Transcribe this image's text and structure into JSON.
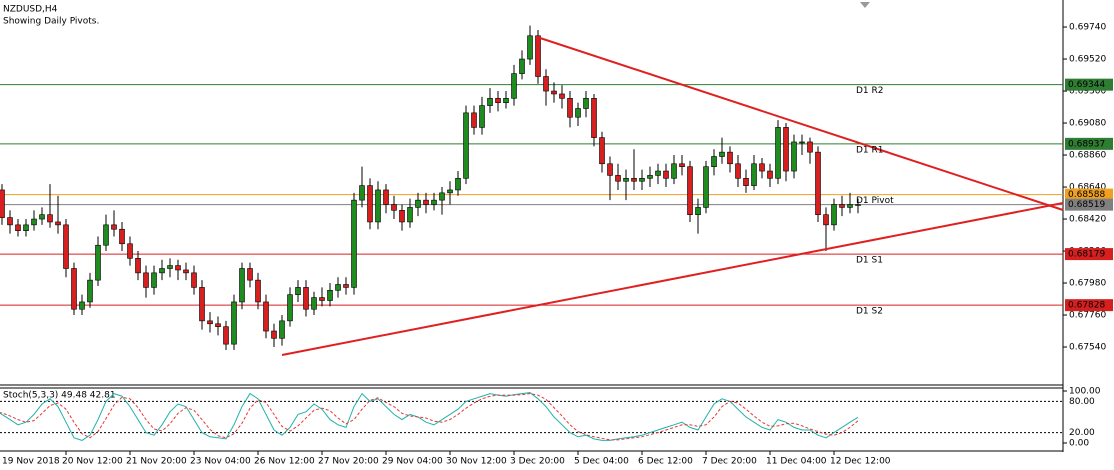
{
  "chart_data": {
    "type": "candlestick",
    "title": "NZDUSD,H4",
    "subtitle": "Showing Daily Pivots.",
    "x": [
      "19 Nov 2018",
      null,
      null,
      null,
      null,
      null,
      null,
      null,
      null,
      "20 Nov 12:00",
      null,
      null,
      null,
      null,
      null,
      null,
      null,
      "21 Nov 20:00",
      null,
      null,
      null,
      null,
      null,
      null,
      null,
      "23 Nov 04:00",
      null,
      null,
      null,
      null,
      null,
      null,
      null,
      "26 Nov 12:00",
      null,
      null,
      null,
      null,
      null,
      null,
      null,
      "27 Nov 20:00",
      null,
      null,
      null,
      null,
      null,
      null,
      null,
      "29 Nov 04:00",
      null,
      null,
      null,
      null,
      null,
      null,
      null,
      "30 Nov 12:00",
      null,
      null,
      null,
      null,
      null,
      null,
      null,
      "3 Dec 20:00",
      null,
      null,
      null,
      null,
      null,
      null,
      null,
      "5 Dec 04:00",
      null,
      null,
      null,
      null,
      null,
      null,
      null,
      "6 Dec 12:00",
      null,
      null,
      null,
      null,
      null,
      null,
      null,
      "7 Dec 20:00",
      null,
      null,
      null,
      null,
      null,
      null,
      null,
      "11 Dec 04:00",
      null,
      null,
      null,
      null,
      null,
      null,
      null,
      "12 Dec 12:00",
      null,
      null,
      null
    ],
    "candles": [
      [
        0.687,
        0.6875,
        0.6855,
        0.6862
      ],
      [
        0.6862,
        0.6866,
        0.6838,
        0.6843
      ],
      [
        0.6843,
        0.6848,
        0.6832,
        0.6838
      ],
      [
        0.6838,
        0.6842,
        0.683,
        0.6834
      ],
      [
        0.6834,
        0.6842,
        0.683,
        0.6838
      ],
      [
        0.6838,
        0.6848,
        0.6834,
        0.6842
      ],
      [
        0.6842,
        0.685,
        0.6838,
        0.6845
      ],
      [
        0.6845,
        0.6866,
        0.6836,
        0.684
      ],
      [
        0.684,
        0.6858,
        0.6832,
        0.6838
      ],
      [
        0.6838,
        0.6842,
        0.6802,
        0.6808
      ],
      [
        0.6808,
        0.6812,
        0.6776,
        0.678
      ],
      [
        0.678,
        0.679,
        0.6776,
        0.6785
      ],
      [
        0.6785,
        0.6805,
        0.6781,
        0.68
      ],
      [
        0.68,
        0.683,
        0.6796,
        0.6824
      ],
      [
        0.6824,
        0.6845,
        0.682,
        0.6838
      ],
      [
        0.6838,
        0.6848,
        0.683,
        0.6835
      ],
      [
        0.6835,
        0.684,
        0.682,
        0.6825
      ],
      [
        0.6825,
        0.683,
        0.681,
        0.6815
      ],
      [
        0.6815,
        0.682,
        0.68,
        0.6805
      ],
      [
        0.6805,
        0.681,
        0.6788,
        0.6795
      ],
      [
        0.6795,
        0.681,
        0.679,
        0.6805
      ],
      [
        0.6805,
        0.6814,
        0.68,
        0.6808
      ],
      [
        0.6808,
        0.6815,
        0.6802,
        0.681
      ],
      [
        0.681,
        0.6814,
        0.68,
        0.6807
      ],
      [
        0.6807,
        0.6812,
        0.68,
        0.6805
      ],
      [
        0.6805,
        0.681,
        0.679,
        0.6795
      ],
      [
        0.6795,
        0.68,
        0.6766,
        0.6772
      ],
      [
        0.6772,
        0.6778,
        0.6764,
        0.677
      ],
      [
        0.677,
        0.6775,
        0.6762,
        0.6768
      ],
      [
        0.6768,
        0.6772,
        0.6752,
        0.6756
      ],
      [
        0.6756,
        0.679,
        0.6752,
        0.6785
      ],
      [
        0.6785,
        0.6812,
        0.678,
        0.6808
      ],
      [
        0.6808,
        0.6812,
        0.6795,
        0.68
      ],
      [
        0.68,
        0.6805,
        0.678,
        0.6785
      ],
      [
        0.6785,
        0.679,
        0.676,
        0.6765
      ],
      [
        0.6765,
        0.677,
        0.6754,
        0.676
      ],
      [
        0.676,
        0.6776,
        0.6755,
        0.6772
      ],
      [
        0.6772,
        0.6795,
        0.6768,
        0.679
      ],
      [
        0.679,
        0.68,
        0.6785,
        0.6795
      ],
      [
        0.6795,
        0.68,
        0.6775,
        0.678
      ],
      [
        0.678,
        0.6792,
        0.6776,
        0.6788
      ],
      [
        0.6788,
        0.6795,
        0.6782,
        0.6786
      ],
      [
        0.6786,
        0.6798,
        0.6782,
        0.6793
      ],
      [
        0.6793,
        0.6802,
        0.6788,
        0.6797
      ],
      [
        0.6797,
        0.6802,
        0.679,
        0.6795
      ],
      [
        0.6795,
        0.686,
        0.679,
        0.6855
      ],
      [
        0.6855,
        0.6878,
        0.685,
        0.6865
      ],
      [
        0.6865,
        0.687,
        0.6835,
        0.684
      ],
      [
        0.684,
        0.6868,
        0.6835,
        0.6862
      ],
      [
        0.6862,
        0.6866,
        0.6846,
        0.6852
      ],
      [
        0.6852,
        0.6858,
        0.6842,
        0.6848
      ],
      [
        0.6848,
        0.6852,
        0.6834,
        0.684
      ],
      [
        0.684,
        0.6856,
        0.6836,
        0.685
      ],
      [
        0.685,
        0.686,
        0.6844,
        0.6855
      ],
      [
        0.6855,
        0.686,
        0.6846,
        0.6852
      ],
      [
        0.6852,
        0.686,
        0.6848,
        0.6855
      ],
      [
        0.6855,
        0.6864,
        0.6845,
        0.686
      ],
      [
        0.686,
        0.6868,
        0.6852,
        0.6862
      ],
      [
        0.6862,
        0.6875,
        0.6858,
        0.687
      ],
      [
        0.687,
        0.692,
        0.6866,
        0.6915
      ],
      [
        0.6915,
        0.692,
        0.69,
        0.6905
      ],
      [
        0.6905,
        0.6926,
        0.69,
        0.692
      ],
      [
        0.692,
        0.6932,
        0.6915,
        0.6925
      ],
      [
        0.6925,
        0.693,
        0.6916,
        0.6922
      ],
      [
        0.6922,
        0.693,
        0.6918,
        0.6925
      ],
      [
        0.6925,
        0.6948,
        0.692,
        0.6942
      ],
      [
        0.6942,
        0.6958,
        0.6938,
        0.6952
      ],
      [
        0.6952,
        0.6975,
        0.6948,
        0.6968
      ],
      [
        0.6968,
        0.6972,
        0.6935,
        0.694
      ],
      [
        0.694,
        0.6945,
        0.692,
        0.693
      ],
      [
        0.693,
        0.6936,
        0.6922,
        0.6928
      ],
      [
        0.6928,
        0.6934,
        0.6918,
        0.6925
      ],
      [
        0.6925,
        0.693,
        0.6905,
        0.6912
      ],
      [
        0.6912,
        0.6922,
        0.6906,
        0.6918
      ],
      [
        0.6918,
        0.693,
        0.6912,
        0.6925
      ],
      [
        0.6925,
        0.6928,
        0.6892,
        0.6898
      ],
      [
        0.6898,
        0.6902,
        0.6874,
        0.688
      ],
      [
        0.688,
        0.6885,
        0.6855,
        0.6872
      ],
      [
        0.6872,
        0.688,
        0.6862,
        0.6868
      ],
      [
        0.6868,
        0.6876,
        0.6855,
        0.687
      ],
      [
        0.687,
        0.689,
        0.6862,
        0.6868
      ],
      [
        0.6868,
        0.6876,
        0.6862,
        0.687
      ],
      [
        0.687,
        0.6878,
        0.6864,
        0.6872
      ],
      [
        0.6872,
        0.688,
        0.6866,
        0.6875
      ],
      [
        0.6875,
        0.688,
        0.6864,
        0.687
      ],
      [
        0.687,
        0.6886,
        0.6866,
        0.688
      ],
      [
        0.688,
        0.6886,
        0.6872,
        0.6878
      ],
      [
        0.6878,
        0.6882,
        0.684,
        0.6845
      ],
      [
        0.6845,
        0.6856,
        0.6832,
        0.685
      ],
      [
        0.685,
        0.6882,
        0.6846,
        0.6878
      ],
      [
        0.6878,
        0.689,
        0.6872,
        0.6885
      ],
      [
        0.6885,
        0.6898,
        0.688,
        0.6888
      ],
      [
        0.6888,
        0.6892,
        0.6874,
        0.688
      ],
      [
        0.688,
        0.6886,
        0.6864,
        0.687
      ],
      [
        0.687,
        0.6876,
        0.686,
        0.6865
      ],
      [
        0.6865,
        0.6886,
        0.6862,
        0.688
      ],
      [
        0.688,
        0.6884,
        0.687,
        0.6875
      ],
      [
        0.6875,
        0.688,
        0.6864,
        0.687
      ],
      [
        0.687,
        0.691,
        0.6866,
        0.6905
      ],
      [
        0.6905,
        0.6908,
        0.6868,
        0.6875
      ],
      [
        0.6875,
        0.69,
        0.687,
        0.6895
      ],
      [
        0.6895,
        0.69,
        0.6886,
        0.6895
      ],
      [
        0.6895,
        0.6898,
        0.688,
        0.6888
      ],
      [
        0.6888,
        0.6892,
        0.684,
        0.6845
      ],
      [
        0.6845,
        0.685,
        0.682,
        0.6838
      ],
      [
        0.6838,
        0.6856,
        0.6834,
        0.6852
      ],
      [
        0.6852,
        0.6858,
        0.6844,
        0.685
      ],
      [
        0.685,
        0.686,
        0.6846,
        0.6852
      ],
      [
        0.6852,
        0.6856,
        0.6846,
        0.6852
      ]
    ],
    "up_color": "#1e8c1e",
    "down_color": "#d62020",
    "ylim": [
      0.67279,
      0.69926
    ],
    "yticks": [
      {
        "value": 0.6974,
        "label": "0.69740"
      },
      {
        "value": 0.6952,
        "label": "0.69520"
      },
      {
        "value": 0.693,
        "label": "0.69300"
      },
      {
        "value": 0.6908,
        "label": "0.69080"
      },
      {
        "value": 0.6886,
        "label": "0.68860"
      },
      {
        "value": 0.6864,
        "label": "0.68640"
      },
      {
        "value": 0.6842,
        "label": "0.68420"
      },
      {
        "value": 0.682,
        "label": "0.68200"
      },
      {
        "value": 0.6798,
        "label": "0.67980"
      },
      {
        "value": 0.6776,
        "label": "0.67760"
      },
      {
        "value": 0.6754,
        "label": "0.67540"
      }
    ],
    "levels": [
      {
        "name": "D1 R2",
        "value": 0.69344,
        "label": "0.69344",
        "color": "#2e7d32"
      },
      {
        "name": "D1 R1",
        "value": 0.68937,
        "label": "0.68937",
        "color": "#2e7d32"
      },
      {
        "name": "D1 Pivot",
        "value": 0.68588,
        "label": "0.68588",
        "color": "#f0a020"
      },
      {
        "name": "D1 S1",
        "value": 0.68179,
        "label": "0.68179",
        "color": "#d62020"
      },
      {
        "name": "D1 S2",
        "value": 0.67828,
        "label": "0.67828",
        "color": "#d62020"
      }
    ],
    "price": {
      "value": 0.68519,
      "label": "0.68519",
      "color": "#808080"
    },
    "stoch": {
      "title": "Stoch(5,3,3) 49.48 42.81",
      "ylim": [
        -15.4,
        105.8
      ],
      "yticks": [
        {
          "value": 100,
          "label": "100.00"
        },
        {
          "value": 80,
          "label": "80.00"
        },
        {
          "value": 20,
          "label": "20.00"
        },
        {
          "value": 0,
          "label": "0.00"
        }
      ],
      "series": [
        {
          "color": "#20b2aa",
          "values": [
            65,
            55,
            45,
            35,
            40,
            55,
            75,
            85,
            70,
            40,
            10,
            5,
            15,
            45,
            80,
            95,
            90,
            70,
            45,
            20,
            15,
            35,
            60,
            75,
            70,
            45,
            20,
            12,
            10,
            8,
            35,
            70,
            95,
            85,
            55,
            25,
            15,
            30,
            55,
            60,
            75,
            65,
            45,
            35,
            30,
            70,
            95,
            80,
            85,
            70,
            55,
            45,
            55,
            50,
            40,
            35,
            45,
            55,
            65,
            80,
            85,
            90,
            95,
            92,
            90,
            93,
            95,
            97,
            85,
            70,
            50,
            35,
            20,
            12,
            15,
            8,
            5,
            5,
            8,
            10,
            12,
            15,
            20,
            25,
            30,
            35,
            40,
            30,
            25,
            50,
            75,
            85,
            80,
            65,
            50,
            40,
            30,
            25,
            45,
            40,
            30,
            25,
            25,
            15,
            10,
            20,
            30,
            40,
            49.48
          ]
        },
        {
          "color": "#e53935",
          "values": [
            60,
            58,
            52,
            45,
            40,
            43,
            57,
            72,
            77,
            65,
            40,
            18,
            10,
            22,
            47,
            73,
            88,
            85,
            68,
            45,
            27,
            23,
            37,
            57,
            68,
            63,
            45,
            26,
            14,
            10,
            18,
            38,
            67,
            83,
            78,
            55,
            32,
            23,
            33,
            48,
            63,
            67,
            62,
            48,
            37,
            45,
            65,
            82,
            87,
            78,
            70,
            57,
            52,
            50,
            48,
            42,
            40,
            45,
            55,
            67,
            77,
            85,
            90,
            92,
            92,
            92,
            93,
            95,
            92,
            84,
            68,
            52,
            35,
            22,
            16,
            12,
            9,
            6,
            6,
            8,
            10,
            12,
            16,
            20,
            25,
            30,
            35,
            35,
            32,
            35,
            50,
            70,
            80,
            77,
            65,
            52,
            40,
            32,
            33,
            37,
            38,
            33,
            27,
            22,
            17,
            15,
            20,
            30,
            42.81
          ]
        }
      ]
    }
  }
}
